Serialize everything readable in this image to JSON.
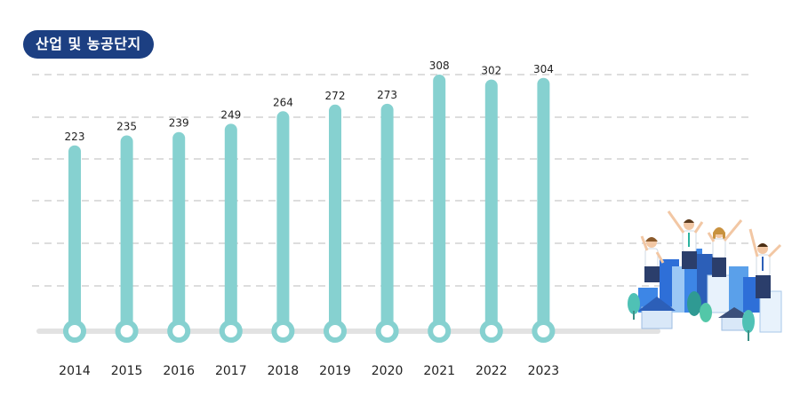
{
  "badge_label": "산업 및 농공단지",
  "chart_data": {
    "type": "bar",
    "title": "",
    "categories": [
      "2014",
      "2015",
      "2016",
      "2017",
      "2018",
      "2019",
      "2020",
      "2021",
      "2022",
      "2023"
    ],
    "series": [
      {
        "values": [
          223,
          235,
          239,
          249,
          264,
          272,
          273,
          308,
          302,
          304
        ]
      }
    ],
    "ylim": [
      0,
      320
    ],
    "grid": true,
    "bar_color": "#86d1d0",
    "baseline_color": "#e2e2e2",
    "grid_color": "#d2d2d2"
  }
}
